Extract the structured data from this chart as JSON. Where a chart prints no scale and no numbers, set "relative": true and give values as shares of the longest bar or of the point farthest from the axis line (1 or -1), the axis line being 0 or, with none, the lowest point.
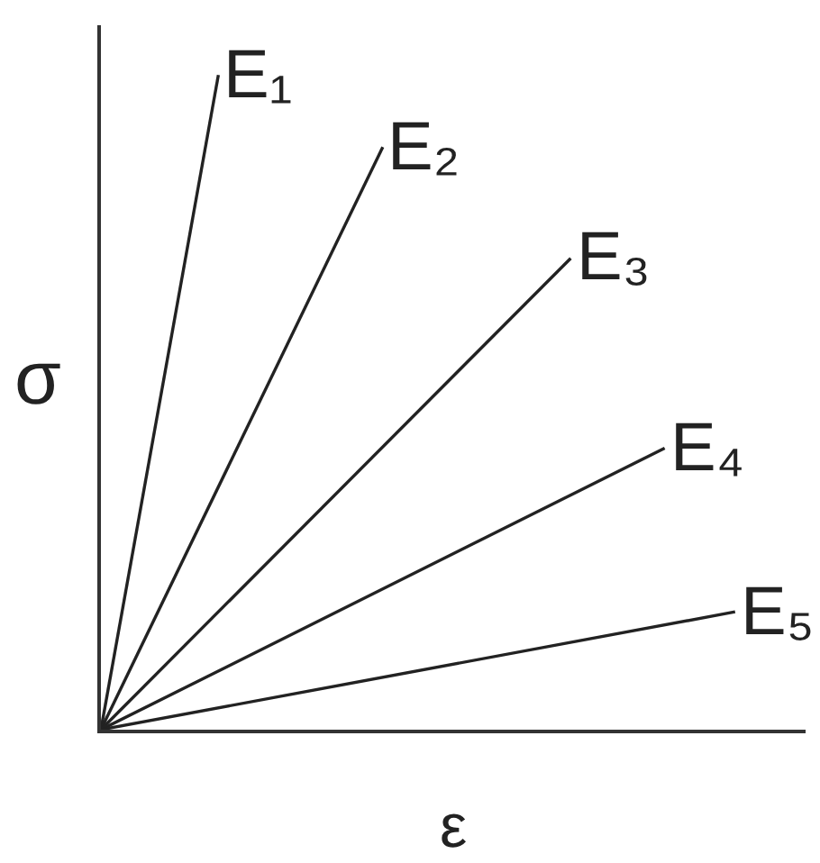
{
  "chart_data": {
    "type": "line",
    "xlabel": "ε",
    "ylabel": "σ",
    "relative": true,
    "line_style": "solid",
    "categories": [
      null,
      null,
      null,
      null,
      null,
      null,
      null,
      null,
      null,
      null,
      null,
      null,
      null,
      null,
      null,
      null,
      null,
      null,
      null,
      null,
      null,
      null,
      null,
      null,
      null,
      null,
      null,
      null,
      null,
      null,
      null
    ],
    "series": [
      {
        "name": "E₁",
        "color": "#222222",
        "values": [
          0,
          null,
          null,
          null,
          null,
          1,
          null,
          null,
          null,
          null,
          null,
          null,
          null,
          null,
          null,
          null,
          null,
          null,
          null,
          null,
          null,
          null,
          null,
          null,
          null,
          null,
          null,
          null,
          null,
          null,
          null
        ]
      },
      {
        "name": "E₂",
        "color": "#222222",
        "values": [
          0,
          null,
          null,
          null,
          null,
          null,
          null,
          null,
          null,
          null,
          null,
          null,
          0.89,
          null,
          null,
          null,
          null,
          null,
          null,
          null,
          null,
          null,
          null,
          null,
          null,
          null,
          null,
          null,
          null,
          null,
          null
        ]
      },
      {
        "name": "E₃",
        "color": "#222222",
        "values": [
          0,
          null,
          null,
          null,
          null,
          null,
          null,
          null,
          null,
          null,
          null,
          null,
          null,
          null,
          null,
          null,
          null,
          null,
          null,
          null,
          0.72,
          null,
          null,
          null,
          null,
          null,
          null,
          null,
          null,
          null,
          null
        ]
      },
      {
        "name": "E₄",
        "color": "#222222",
        "values": [
          0,
          null,
          null,
          null,
          null,
          null,
          null,
          null,
          null,
          null,
          null,
          null,
          null,
          null,
          null,
          null,
          null,
          null,
          null,
          null,
          null,
          null,
          null,
          null,
          0.43,
          null,
          null,
          null,
          null,
          null,
          null
        ]
      },
      {
        "name": "E₅",
        "color": "#222222",
        "values": [
          0,
          null,
          null,
          null,
          null,
          null,
          null,
          null,
          null,
          null,
          null,
          null,
          null,
          null,
          null,
          null,
          null,
          null,
          null,
          null,
          null,
          null,
          null,
          null,
          null,
          null,
          null,
          0.18,
          null,
          null,
          null
        ]
      }
    ]
  }
}
